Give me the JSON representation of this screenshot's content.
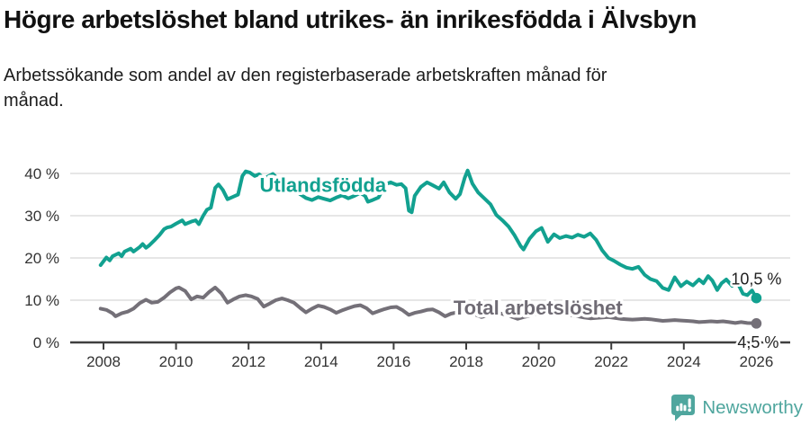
{
  "title": "Högre arbetslöshet bland utrikes- än inrikesfödda i Älvsbyn",
  "subtitle": "Arbetssökande som andel av den registerbaserade arbetskraften månad för månad.",
  "footer": {
    "brand": "Newsworthy",
    "logo_icon": "newsworthy-speech-bubble-bar-chart-icon"
  },
  "colors": {
    "series_utlandsfodda": "#12A190",
    "series_total": "#747078",
    "series_total_label": "#6F6B74",
    "grid": "#d8d8d8",
    "axis": "#3f3f3f",
    "tick_label": "#333333",
    "end_label": "#222222",
    "brand_teal": "#4FA69E"
  },
  "chart_data": {
    "type": "line",
    "title": "Högre arbetslöshet bland utrikes- än inrikesfödda i Älvsbyn",
    "subtitle": "Arbetssökande som andel av den registerbaserade arbetskraften månad för månad.",
    "grid": "horizontal",
    "legend_position": "inline-labels",
    "x_axis": {
      "ticks": [
        2008,
        2010,
        2012,
        2014,
        2016,
        2018,
        2020,
        2022,
        2024,
        2026
      ],
      "range": [
        2007.9,
        2026.9
      ]
    },
    "y_axis": {
      "ticks": [
        0,
        10,
        20,
        30,
        40
      ],
      "tick_labels": [
        "0 %",
        "10 %",
        "20 %",
        "30 %",
        "40 %"
      ],
      "range": [
        0,
        43
      ],
      "unit": "%"
    },
    "series": [
      {
        "name": "Utlandsfödda",
        "color": "#12A190",
        "label_color": "#12A190",
        "end_label": "10,5 %",
        "end_value": 10.5,
        "label_pos": {
          "x": 2014.05,
          "y": 35.6
        },
        "points": [
          [
            2007.92,
            18.3
          ],
          [
            2008.08,
            20.1
          ],
          [
            2008.17,
            19.4
          ],
          [
            2008.25,
            20.4
          ],
          [
            2008.42,
            21.1
          ],
          [
            2008.5,
            20.4
          ],
          [
            2008.58,
            21.5
          ],
          [
            2008.75,
            22.2
          ],
          [
            2008.83,
            21.5
          ],
          [
            2009.0,
            22.6
          ],
          [
            2009.08,
            23.3
          ],
          [
            2009.17,
            22.4
          ],
          [
            2009.25,
            22.9
          ],
          [
            2009.42,
            24.3
          ],
          [
            2009.54,
            25.4
          ],
          [
            2009.67,
            26.8
          ],
          [
            2009.75,
            27.2
          ],
          [
            2009.86,
            27.4
          ],
          [
            2010.0,
            28.1
          ],
          [
            2010.17,
            28.9
          ],
          [
            2010.25,
            28.0
          ],
          [
            2010.42,
            28.6
          ],
          [
            2010.54,
            28.9
          ],
          [
            2010.63,
            28.0
          ],
          [
            2010.75,
            30.0
          ],
          [
            2010.85,
            31.4
          ],
          [
            2010.96,
            31.9
          ],
          [
            2011.08,
            36.6
          ],
          [
            2011.17,
            37.4
          ],
          [
            2011.29,
            36.1
          ],
          [
            2011.42,
            33.9
          ],
          [
            2011.58,
            34.5
          ],
          [
            2011.71,
            35.0
          ],
          [
            2011.83,
            39.4
          ],
          [
            2011.92,
            40.5
          ],
          [
            2012.04,
            40.2
          ],
          [
            2012.17,
            39.4
          ],
          [
            2012.29,
            39.8
          ],
          [
            2012.42,
            38.8
          ],
          [
            2012.54,
            39.3
          ],
          [
            2012.67,
            39.9
          ],
          [
            2012.79,
            38.9
          ],
          [
            2012.92,
            39.2
          ],
          [
            2013.08,
            37.8
          ],
          [
            2013.25,
            36.4
          ],
          [
            2013.42,
            35.1
          ],
          [
            2013.58,
            34.2
          ],
          [
            2013.75,
            33.7
          ],
          [
            2013.92,
            34.4
          ],
          [
            2014.08,
            34.0
          ],
          [
            2014.25,
            33.6
          ],
          [
            2014.42,
            34.3
          ],
          [
            2014.58,
            34.8
          ],
          [
            2014.75,
            34.1
          ],
          [
            2014.92,
            34.7
          ],
          [
            2015.08,
            35.4
          ],
          [
            2015.21,
            34.7
          ],
          [
            2015.29,
            33.3
          ],
          [
            2015.42,
            33.7
          ],
          [
            2015.58,
            34.3
          ],
          [
            2015.71,
            36.3
          ],
          [
            2015.79,
            37.5
          ],
          [
            2015.92,
            37.9
          ],
          [
            2016.08,
            37.3
          ],
          [
            2016.21,
            37.5
          ],
          [
            2016.33,
            36.5
          ],
          [
            2016.42,
            31.2
          ],
          [
            2016.5,
            30.8
          ],
          [
            2016.58,
            34.7
          ],
          [
            2016.75,
            36.8
          ],
          [
            2016.92,
            37.9
          ],
          [
            2017.08,
            37.2
          ],
          [
            2017.25,
            36.4
          ],
          [
            2017.38,
            37.9
          ],
          [
            2017.54,
            35.5
          ],
          [
            2017.71,
            34.0
          ],
          [
            2017.83,
            35.1
          ],
          [
            2017.96,
            39.0
          ],
          [
            2018.04,
            40.7
          ],
          [
            2018.17,
            37.6
          ],
          [
            2018.33,
            35.5
          ],
          [
            2018.5,
            34.1
          ],
          [
            2018.67,
            32.7
          ],
          [
            2018.83,
            30.2
          ],
          [
            2019.0,
            28.9
          ],
          [
            2019.17,
            27.4
          ],
          [
            2019.33,
            25.4
          ],
          [
            2019.5,
            22.8
          ],
          [
            2019.58,
            22.0
          ],
          [
            2019.75,
            24.6
          ],
          [
            2019.92,
            26.3
          ],
          [
            2020.08,
            27.1
          ],
          [
            2020.25,
            23.8
          ],
          [
            2020.42,
            25.6
          ],
          [
            2020.58,
            24.7
          ],
          [
            2020.75,
            25.2
          ],
          [
            2020.92,
            24.8
          ],
          [
            2021.08,
            25.5
          ],
          [
            2021.25,
            25.0
          ],
          [
            2021.42,
            25.8
          ],
          [
            2021.58,
            24.3
          ],
          [
            2021.75,
            21.8
          ],
          [
            2021.92,
            20.0
          ],
          [
            2022.08,
            19.3
          ],
          [
            2022.25,
            18.4
          ],
          [
            2022.42,
            17.7
          ],
          [
            2022.58,
            17.4
          ],
          [
            2022.75,
            17.9
          ],
          [
            2022.92,
            16.0
          ],
          [
            2023.08,
            15.0
          ],
          [
            2023.25,
            14.5
          ],
          [
            2023.42,
            12.9
          ],
          [
            2023.58,
            12.4
          ],
          [
            2023.75,
            15.4
          ],
          [
            2023.92,
            13.3
          ],
          [
            2024.08,
            14.4
          ],
          [
            2024.25,
            13.5
          ],
          [
            2024.42,
            14.9
          ],
          [
            2024.54,
            14.0
          ],
          [
            2024.67,
            15.7
          ],
          [
            2024.79,
            14.6
          ],
          [
            2024.92,
            12.4
          ],
          [
            2025.04,
            14.0
          ],
          [
            2025.17,
            14.9
          ],
          [
            2025.33,
            13.4
          ],
          [
            2025.46,
            14.5
          ],
          [
            2025.63,
            11.5
          ],
          [
            2025.75,
            11.2
          ],
          [
            2025.88,
            12.3
          ],
          [
            2026.0,
            10.5
          ]
        ]
      },
      {
        "name": "Total arbetslöshet",
        "color": "#747078",
        "label_color": "#6F6B74",
        "end_label": "4,5 %",
        "end_value": 4.5,
        "label_pos": {
          "x": 2019.98,
          "y": 6.6
        },
        "points": [
          [
            2007.92,
            8.0
          ],
          [
            2008.08,
            7.7
          ],
          [
            2008.25,
            6.9
          ],
          [
            2008.33,
            6.2
          ],
          [
            2008.5,
            6.9
          ],
          [
            2008.67,
            7.3
          ],
          [
            2008.83,
            8.0
          ],
          [
            2009.0,
            9.3
          ],
          [
            2009.17,
            10.1
          ],
          [
            2009.33,
            9.4
          ],
          [
            2009.5,
            9.6
          ],
          [
            2009.67,
            10.6
          ],
          [
            2009.83,
            11.8
          ],
          [
            2010.0,
            12.8
          ],
          [
            2010.08,
            13.0
          ],
          [
            2010.25,
            12.2
          ],
          [
            2010.42,
            10.2
          ],
          [
            2010.58,
            10.9
          ],
          [
            2010.75,
            10.6
          ],
          [
            2010.92,
            12.0
          ],
          [
            2011.08,
            13.0
          ],
          [
            2011.25,
            11.6
          ],
          [
            2011.42,
            9.4
          ],
          [
            2011.58,
            10.2
          ],
          [
            2011.75,
            10.9
          ],
          [
            2011.92,
            11.2
          ],
          [
            2012.08,
            10.9
          ],
          [
            2012.25,
            10.3
          ],
          [
            2012.42,
            8.5
          ],
          [
            2012.58,
            9.2
          ],
          [
            2012.75,
            10.0
          ],
          [
            2012.92,
            10.4
          ],
          [
            2013.08,
            10.0
          ],
          [
            2013.25,
            9.4
          ],
          [
            2013.42,
            8.2
          ],
          [
            2013.58,
            7.1
          ],
          [
            2013.75,
            8.0
          ],
          [
            2013.92,
            8.7
          ],
          [
            2014.08,
            8.4
          ],
          [
            2014.25,
            7.8
          ],
          [
            2014.42,
            7.0
          ],
          [
            2014.58,
            7.6
          ],
          [
            2014.75,
            8.1
          ],
          [
            2014.92,
            8.6
          ],
          [
            2015.08,
            8.8
          ],
          [
            2015.25,
            8.1
          ],
          [
            2015.42,
            6.9
          ],
          [
            2015.58,
            7.4
          ],
          [
            2015.75,
            7.9
          ],
          [
            2015.92,
            8.3
          ],
          [
            2016.08,
            8.4
          ],
          [
            2016.25,
            7.6
          ],
          [
            2016.42,
            6.5
          ],
          [
            2016.58,
            7.0
          ],
          [
            2016.75,
            7.3
          ],
          [
            2016.92,
            7.7
          ],
          [
            2017.08,
            7.8
          ],
          [
            2017.25,
            7.1
          ],
          [
            2017.42,
            6.2
          ],
          [
            2017.58,
            6.8
          ],
          [
            2017.75,
            7.1
          ],
          [
            2017.92,
            7.5
          ],
          [
            2018.08,
            7.2
          ],
          [
            2018.25,
            6.6
          ],
          [
            2018.42,
            6.0
          ],
          [
            2018.58,
            6.4
          ],
          [
            2018.75,
            6.7
          ],
          [
            2018.92,
            6.9
          ],
          [
            2019.08,
            6.6
          ],
          [
            2019.25,
            6.1
          ],
          [
            2019.42,
            5.6
          ],
          [
            2019.58,
            6.0
          ],
          [
            2019.75,
            6.3
          ],
          [
            2019.92,
            6.7
          ],
          [
            2020.08,
            7.1
          ],
          [
            2020.25,
            7.3
          ],
          [
            2020.42,
            7.0
          ],
          [
            2020.58,
            6.7
          ],
          [
            2020.75,
            6.5
          ],
          [
            2020.92,
            6.4
          ],
          [
            2021.08,
            6.2
          ],
          [
            2021.25,
            5.9
          ],
          [
            2021.42,
            5.7
          ],
          [
            2021.58,
            5.8
          ],
          [
            2021.75,
            5.9
          ],
          [
            2021.92,
            6.0
          ],
          [
            2022.08,
            5.8
          ],
          [
            2022.25,
            5.6
          ],
          [
            2022.42,
            5.5
          ],
          [
            2022.58,
            5.4
          ],
          [
            2022.75,
            5.5
          ],
          [
            2022.92,
            5.6
          ],
          [
            2023.08,
            5.5
          ],
          [
            2023.25,
            5.3
          ],
          [
            2023.42,
            5.1
          ],
          [
            2023.58,
            5.2
          ],
          [
            2023.75,
            5.3
          ],
          [
            2023.92,
            5.2
          ],
          [
            2024.08,
            5.1
          ],
          [
            2024.25,
            5.0
          ],
          [
            2024.42,
            4.8
          ],
          [
            2024.58,
            4.9
          ],
          [
            2024.75,
            5.0
          ],
          [
            2024.92,
            4.9
          ],
          [
            2025.08,
            5.0
          ],
          [
            2025.25,
            4.8
          ],
          [
            2025.42,
            4.6
          ],
          [
            2025.58,
            4.8
          ],
          [
            2025.75,
            4.6
          ],
          [
            2026.0,
            4.5
          ]
        ]
      }
    ]
  }
}
